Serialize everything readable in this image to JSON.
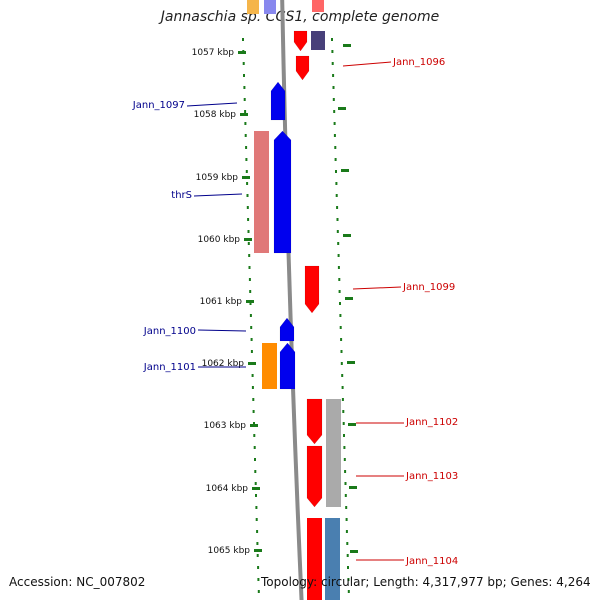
{
  "title": "Jannaschia sp. CCS1, complete genome",
  "footer": {
    "accession": "Accession: NC_007802",
    "stats": "Topology: circular; Length: 4,317,977 bp; Genes: 4,264"
  },
  "colors": {
    "backbone": "#8a8a8a",
    "tick": "#1a7a1a",
    "label_plus": "#cc0000",
    "label_minus": "#00008b",
    "gene_plus": "#ff0000",
    "gene_minus": "#0000ee",
    "rna_plus": "#aaaaaa",
    "rna_minus": "#ff8c00",
    "pink": "#e07878",
    "purple": "#48407a",
    "steel": "#4a7fb0"
  },
  "scale": [
    {
      "label": "1057 kbp"
    },
    {
      "label": "1058 kbp"
    },
    {
      "label": "1059 kbp"
    },
    {
      "label": "1060 kbp"
    },
    {
      "label": "1061 kbp"
    },
    {
      "label": "1062 kbp"
    },
    {
      "label": "1063 kbp"
    },
    {
      "label": "1064 kbp"
    },
    {
      "label": "1065 kbp"
    }
  ],
  "genes": [
    {
      "name": "Jann_1096",
      "strand": "+"
    },
    {
      "name": "Jann_1097",
      "strand": "-"
    },
    {
      "name": "thrS",
      "strand": "-"
    },
    {
      "name": "Jann_1099",
      "strand": "+"
    },
    {
      "name": "Jann_1100",
      "strand": "-"
    },
    {
      "name": "Jann_1101",
      "strand": "-"
    },
    {
      "name": "Jann_1102",
      "strand": "+"
    },
    {
      "name": "Jann_1103",
      "strand": "+"
    },
    {
      "name": "Jann_1104",
      "strand": "+"
    }
  ]
}
